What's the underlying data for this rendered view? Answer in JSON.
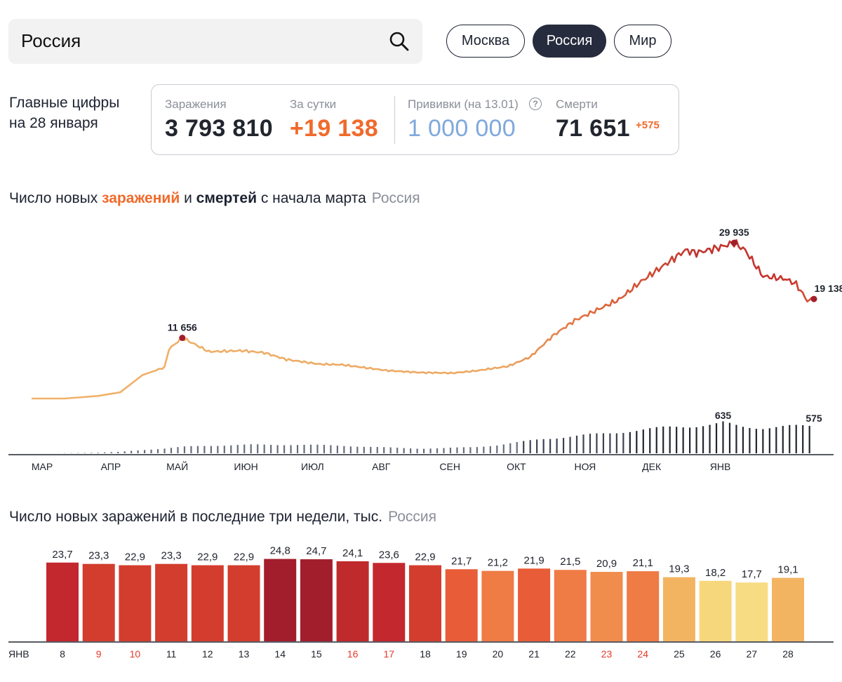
{
  "search": {
    "value": "Россия"
  },
  "region_tabs": [
    {
      "label": "Москва",
      "active": false
    },
    {
      "label": "Россия",
      "active": true
    },
    {
      "label": "Мир",
      "active": false
    }
  ],
  "key_figures": {
    "title_line1": "Главные цифры",
    "title_line2": "на 28 января",
    "infections_label": "Заражения",
    "infections_value": "3 793 810",
    "daily_label": "За сутки",
    "daily_value": "+19 138",
    "vaccinations_label": "Прививки (на 13.01)",
    "vaccinations_value": "1 000 000",
    "help_symbol": "?",
    "deaths_label": "Смерти",
    "deaths_value": "71 651",
    "deaths_delta": "+575"
  },
  "colors": {
    "infection_orange": "#f06a2b",
    "vaccination_blue": "#7fa8dd",
    "dark": "#21252e",
    "label_grey": "#8b8f99",
    "weekend_red": "#e53a2a"
  },
  "chart1": {
    "title_part1": "Число новых ",
    "title_highlight1": "заражений",
    "title_part2": " и ",
    "title_highlight2": "смертей",
    "title_part3": " с начала марта",
    "region": "Россия"
  },
  "chart2": {
    "title": "Число новых заражений в последние три недели, тыс.",
    "region": "Россия"
  },
  "chart_data": [
    {
      "type": "line",
      "title": "Число новых заражений и смертей с начала марта",
      "x_labels": [
        "МАР",
        "АПР",
        "МАЙ",
        "ИЮН",
        "ИЮЛ",
        "АВГ",
        "СЕН",
        "ОКТ",
        "НОЯ",
        "ДЕК",
        "ЯНВ"
      ],
      "series": [
        {
          "name": "заражений",
          "values": [
            [
              0,
              0
            ],
            [
              15,
              2
            ],
            [
              30,
              500
            ],
            [
              40,
              1200
            ],
            [
              50,
              4500
            ],
            [
              60,
              6000
            ],
            [
              62,
              9500
            ],
            [
              68,
              11656
            ],
            [
              72,
              10800
            ],
            [
              80,
              9000
            ],
            [
              95,
              9200
            ],
            [
              105,
              8800
            ],
            [
              115,
              7500
            ],
            [
              130,
              6600
            ],
            [
              140,
              6500
            ],
            [
              160,
              5400
            ],
            [
              175,
              5000
            ],
            [
              190,
              4900
            ],
            [
              200,
              5300
            ],
            [
              215,
              6200
            ],
            [
              225,
              8000
            ],
            [
              235,
              12000
            ],
            [
              245,
              15000
            ],
            [
              255,
              17000
            ],
            [
              265,
              19000
            ],
            [
              275,
              22500
            ],
            [
              285,
              25500
            ],
            [
              290,
              27000
            ],
            [
              295,
              28500
            ],
            [
              300,
              28000
            ],
            [
              310,
              29000
            ],
            [
              317,
              29935
            ],
            [
              322,
              28500
            ],
            [
              330,
              23500
            ],
            [
              340,
              23000
            ],
            [
              345,
              22000
            ],
            [
              350,
              18800
            ],
            [
              353,
              19138
            ]
          ]
        },
        {
          "name": "смертей",
          "type": "bar",
          "values": [
            [
              12,
              2
            ],
            [
              20,
              6
            ],
            [
              30,
              12
            ],
            [
              40,
              30
            ],
            [
              50,
              70
            ],
            [
              60,
              100
            ],
            [
              70,
              140
            ],
            [
              80,
              160
            ],
            [
              90,
              170
            ],
            [
              100,
              180
            ],
            [
              120,
              180
            ],
            [
              140,
              160
            ],
            [
              160,
              120
            ],
            [
              175,
              100
            ],
            [
              185,
              105
            ],
            [
              200,
              130
            ],
            [
              210,
              170
            ],
            [
              220,
              230
            ],
            [
              230,
              300
            ],
            [
              240,
              340
            ],
            [
              250,
              380
            ],
            [
              260,
              420
            ],
            [
              270,
              470
            ],
            [
              280,
              510
            ],
            [
              290,
              560
            ],
            [
              300,
              580
            ],
            [
              308,
              600
            ],
            [
              312,
              635
            ],
            [
              320,
              560
            ],
            [
              330,
              540
            ],
            [
              340,
              560
            ],
            [
              345,
              565
            ],
            [
              353,
              575
            ]
          ]
        }
      ],
      "annotations": [
        {
          "label": "11 656",
          "series": "заражений",
          "x": 68,
          "y": 11656
        },
        {
          "label": "29 935",
          "series": "заражений",
          "x": 317,
          "y": 29935
        },
        {
          "label": "19 138",
          "series": "заражений",
          "x": 353,
          "y": 19138
        },
        {
          "label": "635",
          "series": "смертей",
          "x": 312,
          "y": 635
        },
        {
          "label": "575",
          "series": "смертей",
          "x": 353,
          "y": 575
        }
      ]
    },
    {
      "type": "bar",
      "title": "Число новых заражений в последние три недели, тыс.",
      "month_label": "ЯНВ",
      "categories": [
        "8",
        "9",
        "10",
        "11",
        "12",
        "13",
        "14",
        "15",
        "16",
        "17",
        "18",
        "19",
        "20",
        "21",
        "22",
        "23",
        "24",
        "25",
        "26",
        "27",
        "28"
      ],
      "values": [
        23.7,
        23.3,
        22.9,
        23.3,
        22.9,
        22.9,
        24.8,
        24.7,
        24.1,
        23.6,
        22.9,
        21.7,
        21.2,
        21.9,
        21.5,
        20.9,
        21.1,
        19.3,
        18.2,
        17.7,
        19.1
      ],
      "value_labels": [
        "23,7",
        "23,3",
        "22,9",
        "23,3",
        "22,9",
        "22,9",
        "24,8",
        "24,7",
        "24,1",
        "23,6",
        "22,9",
        "21,7",
        "21,2",
        "21,9",
        "21,5",
        "20,9",
        "21,1",
        "19,3",
        "18,2",
        "17,7",
        "19,1"
      ],
      "weekend": [
        false,
        true,
        true,
        false,
        false,
        false,
        false,
        false,
        true,
        true,
        false,
        false,
        false,
        false,
        false,
        true,
        true,
        false,
        false,
        false,
        false
      ],
      "bar_colors": [
        "#c3282e",
        "#d33d2d",
        "#d33d2d",
        "#d33d2d",
        "#d33d2d",
        "#d33d2d",
        "#a31e2c",
        "#a31e2c",
        "#bf2a2d",
        "#c3282e",
        "#d33d2d",
        "#e85c38",
        "#ef7b45",
        "#e85c38",
        "#ef7b45",
        "#f08c4c",
        "#ef7b45",
        "#f3b461",
        "#f7d77c",
        "#f8dc83",
        "#f3b461"
      ],
      "ylim": [
        0,
        25
      ]
    }
  ]
}
